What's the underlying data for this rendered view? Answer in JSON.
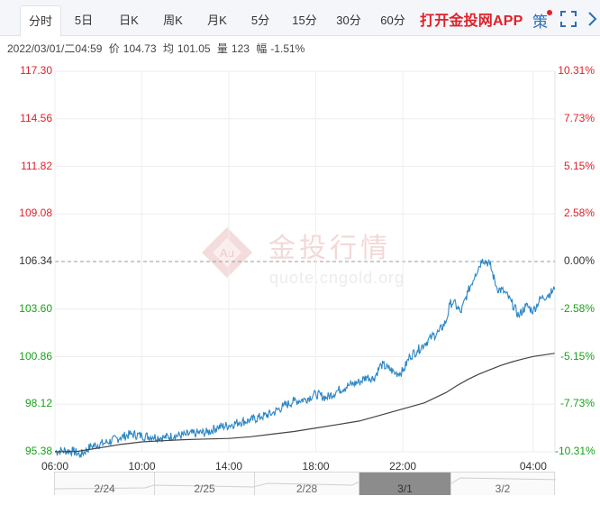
{
  "tabs": [
    {
      "label": "分时",
      "active": true
    },
    {
      "label": "5日",
      "active": false
    },
    {
      "label": "日K",
      "active": false
    },
    {
      "label": "周K",
      "active": false
    },
    {
      "label": "月K",
      "active": false
    },
    {
      "label": "5分",
      "active": false
    },
    {
      "label": "15分",
      "active": false
    },
    {
      "label": "30分",
      "active": false
    },
    {
      "label": "60分",
      "active": false
    }
  ],
  "promo": "打开金投网APP",
  "side_icon": "策",
  "info": {
    "datetime": "2022/03/01/二04:59",
    "price_label": "价",
    "price": "104.73",
    "avg_label": "均",
    "avg": "101.05",
    "vol_label": "量",
    "vol": "123",
    "chg_label": "幅",
    "chg": "-1.51%"
  },
  "watermark": {
    "cn": "金投行情",
    "url": "quote.cngold.org"
  },
  "colors": {
    "price_line": "#2b86c5",
    "avg_line": "#444444",
    "up": "#e0202a",
    "down": "#19a11b",
    "ref": "#999999"
  },
  "chart_data": {
    "type": "line",
    "reference_price": 106.34,
    "ylim": [
      95.38,
      117.3
    ],
    "y_ticks_left": [
      "117.30",
      "114.56",
      "111.82",
      "109.08",
      "106.34",
      "103.60",
      "100.86",
      "98.12",
      "95.38"
    ],
    "y_ticks_right": [
      "10.31%",
      "7.73%",
      "5.15%",
      "2.58%",
      "0.00%",
      "-2.58%",
      "-5.15%",
      "-7.73%",
      "-10.31%"
    ],
    "x_ticks": [
      "06:00",
      "10:00",
      "14:00",
      "18:00",
      "22:00",
      "04:00"
    ],
    "x_range": [
      "2022-02-28 06:00",
      "2022-03-01 05:00"
    ],
    "series": [
      {
        "name": "价",
        "x": [
          "06:00",
          "06:20",
          "06:50",
          "07:10",
          "07:40",
          "08:20",
          "09:00",
          "09:30",
          "10:00",
          "10:30",
          "11:00",
          "11:30",
          "12:00",
          "12:30",
          "13:00",
          "13:30",
          "14:00",
          "14:30",
          "15:00",
          "15:30",
          "16:00",
          "16:30",
          "17:00",
          "17:30",
          "18:00",
          "18:30",
          "19:00",
          "19:30",
          "20:00",
          "20:20",
          "20:40",
          "21:00",
          "21:20",
          "21:40",
          "22:00",
          "22:20",
          "22:40",
          "23:00",
          "23:20",
          "23:40",
          "00:00",
          "00:10",
          "00:20",
          "00:40",
          "01:00",
          "01:20",
          "01:40",
          "02:00",
          "02:20",
          "02:40",
          "03:00",
          "03:20",
          "03:40",
          "04:00",
          "04:20",
          "04:40",
          "04:59"
        ],
        "values": [
          95.4,
          95.45,
          95.42,
          95.2,
          95.7,
          95.9,
          96.2,
          96.4,
          96.3,
          96.25,
          96.2,
          96.3,
          96.35,
          96.45,
          96.5,
          96.8,
          96.9,
          97.1,
          97.2,
          97.4,
          97.6,
          98.0,
          98.3,
          98.4,
          98.7,
          98.5,
          98.9,
          99.2,
          99.4,
          99.7,
          99.6,
          100.4,
          100.2,
          99.9,
          100.0,
          100.9,
          101.2,
          101.6,
          102.0,
          102.3,
          102.9,
          103.9,
          104.0,
          103.4,
          104.6,
          105.6,
          106.5,
          106.2,
          104.8,
          104.6,
          104.0,
          103.2,
          103.8,
          103.5,
          104.2,
          104.4,
          104.73
        ]
      },
      {
        "name": "均",
        "x": [
          "06:00",
          "07:00",
          "08:00",
          "09:00",
          "10:00",
          "11:00",
          "12:00",
          "13:00",
          "14:00",
          "15:00",
          "16:00",
          "17:00",
          "18:00",
          "19:00",
          "20:00",
          "21:00",
          "22:00",
          "23:00",
          "00:00",
          "00:30",
          "01:00",
          "01:30",
          "02:00",
          "02:30",
          "03:00",
          "03:30",
          "04:00",
          "04:59"
        ],
        "values": [
          95.38,
          95.4,
          95.6,
          95.8,
          95.95,
          96.02,
          96.08,
          96.12,
          96.15,
          96.25,
          96.4,
          96.55,
          96.75,
          96.95,
          97.15,
          97.5,
          97.85,
          98.2,
          98.8,
          99.2,
          99.55,
          99.85,
          100.1,
          100.35,
          100.55,
          100.72,
          100.87,
          101.05
        ]
      }
    ]
  },
  "navigator": [
    {
      "label": "2/24",
      "selected": false
    },
    {
      "label": "2/25",
      "selected": false
    },
    {
      "label": "2/28",
      "selected": false
    },
    {
      "label": "3/1",
      "selected": true
    },
    {
      "label": "3/2",
      "selected": false
    }
  ]
}
